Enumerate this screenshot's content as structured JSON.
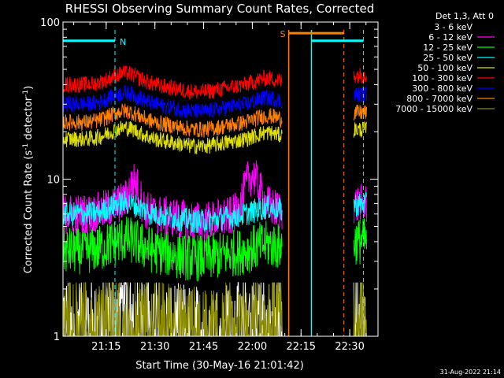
{
  "chart_data": {
    "type": "line",
    "title": "RHESSI Observing Summary Count Rates, Corrected",
    "xlabel": "Start Time (30-May-16 21:01:42)",
    "ylabel_main": "Corrected Count Rate (s",
    "ylabel_sup1": "-1",
    "ylabel_mid": " detector",
    "ylabel_sup2": "-1",
    "ylabel_end": ")",
    "yscale": "log",
    "ylim": [
      1,
      100
    ],
    "xlim_minutes": [
      0,
      97
    ],
    "x_tick_labels": [
      "21:15",
      "21:30",
      "21:45",
      "22:00",
      "22:15",
      "22:30"
    ],
    "x_tick_minutes": [
      13.3,
      28.3,
      43.3,
      58.3,
      73.3,
      88.3
    ],
    "y_tick_labels": [
      "1",
      "10",
      "100"
    ],
    "y_tick_values": [
      1,
      10,
      100
    ],
    "legend_header": "Det 1,3, Att 0",
    "legend_position": "top-right outside",
    "series": [
      {
        "name": "3 - 6 keV",
        "color": "#ffffff",
        "approx_level": 1.5
      },
      {
        "name": "6 - 12 keV",
        "color": "#ff00ff",
        "approx_level": 6.0
      },
      {
        "name": "12 - 25 keV",
        "color": "#00ff00",
        "approx_level": 3.5
      },
      {
        "name": "25 - 50 keV",
        "color": "#00ffff",
        "approx_level": 6.0
      },
      {
        "name": "50 - 100 keV",
        "color": "#e0e000",
        "approx_level": 18
      },
      {
        "name": "100 - 300 keV",
        "color": "#ff0000",
        "approx_level": 40
      },
      {
        "name": "300 - 800 keV",
        "color": "#0000ff",
        "approx_level": 30
      },
      {
        "name": "800 - 7000 keV",
        "color": "#ff8000",
        "approx_level": 23
      },
      {
        "name": "7000 - 15000 keV",
        "color": "#8b8b00",
        "approx_level": 1.5
      }
    ],
    "flags": [
      {
        "label": "N",
        "color": "#00ffff",
        "x_start": 0,
        "x_end": 16,
        "level": 76
      },
      {
        "label": "S",
        "color": "#ff8000",
        "x_start": 69.5,
        "x_end": 86.5,
        "level": 85
      },
      {
        "label": "",
        "color": "#00ffff",
        "x_start": 76.5,
        "x_end": 92.5,
        "level": 76
      }
    ],
    "dashed_lines_minutes": [
      {
        "x": 16,
        "color": "#00ffff"
      },
      {
        "x": 86.5,
        "color": "#ff8000"
      },
      {
        "x": 92.5,
        "color": "#00ffff"
      }
    ],
    "solid_lines_minutes": [
      {
        "x": 69.5,
        "color": "#ff8000"
      },
      {
        "x": 76.5,
        "color": "#00ffff"
      }
    ],
    "data_gap_minutes": [
      67.5,
      89.5
    ]
  },
  "footer": {
    "date": "31-Aug-2022 21:14"
  }
}
